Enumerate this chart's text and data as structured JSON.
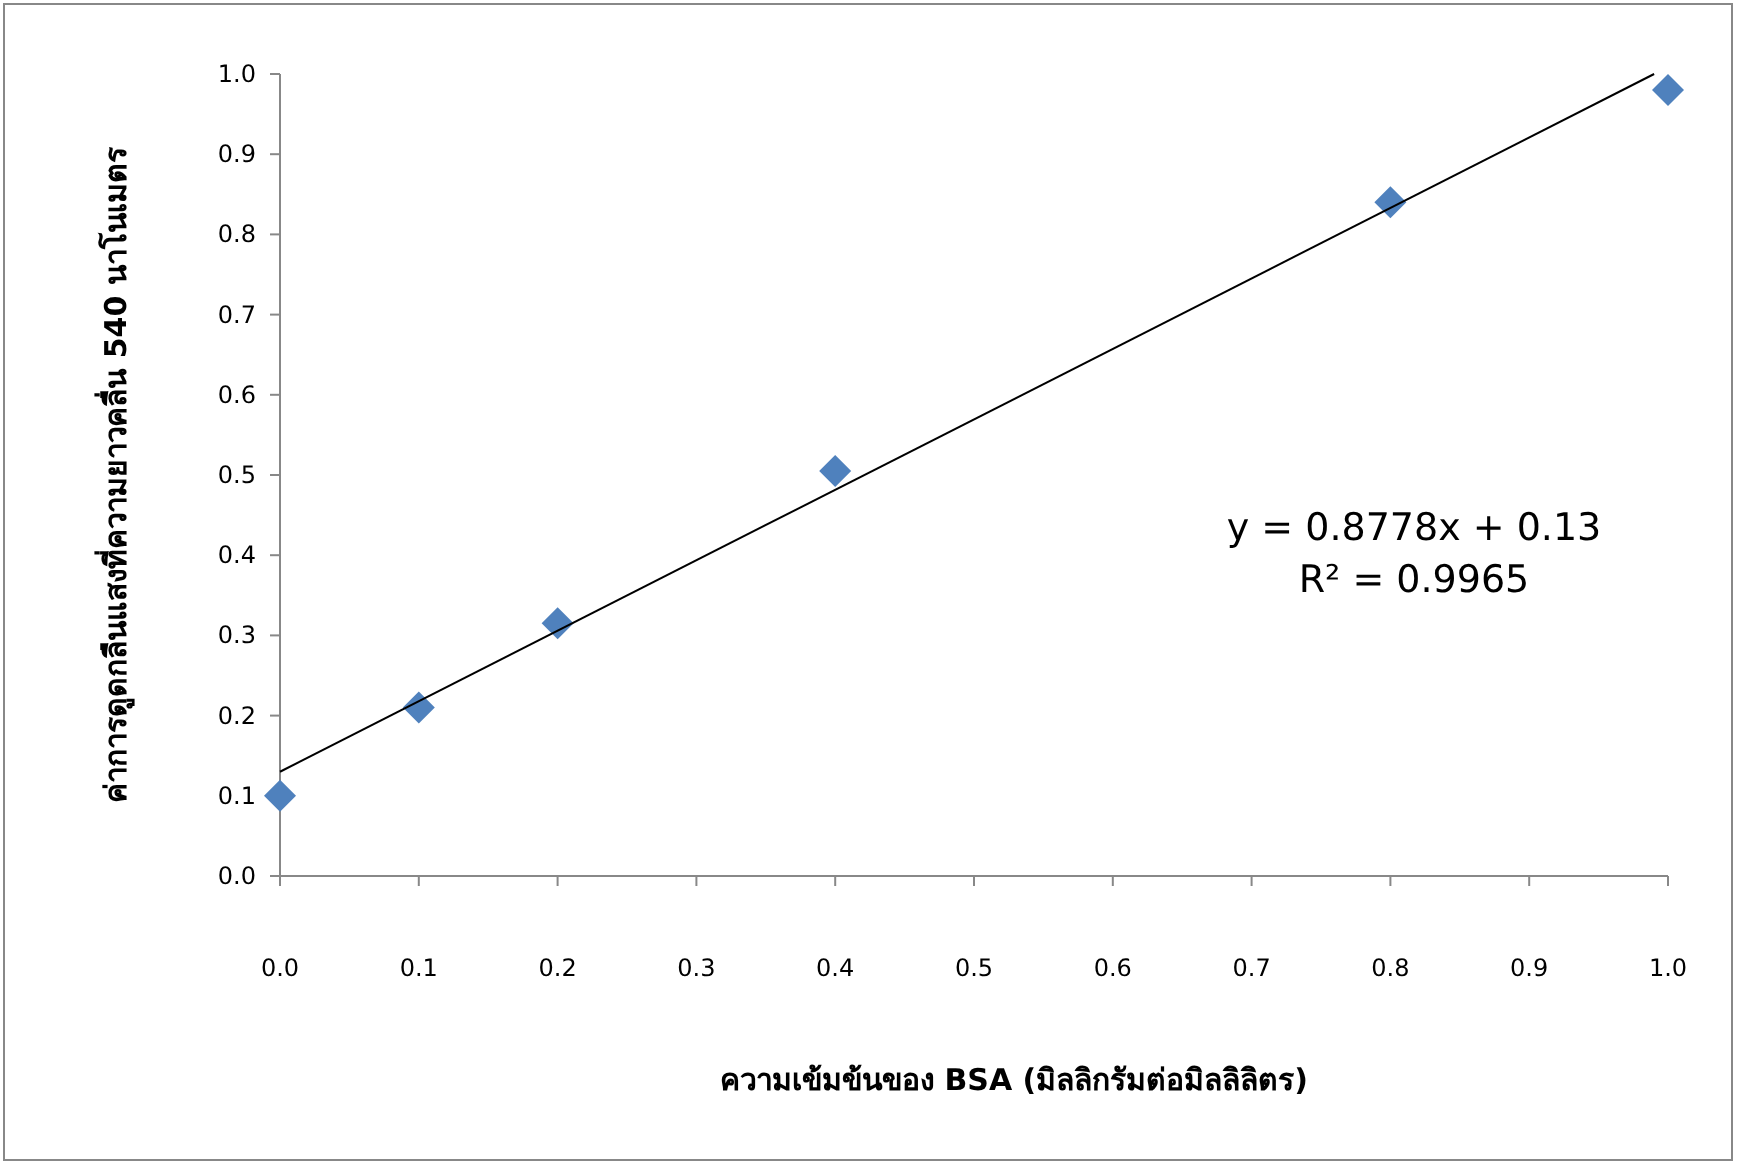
{
  "chart_data": {
    "type": "scatter",
    "xlabel": "ความเข้มข้นของ BSA (มิลลิกรัมต่อมิลลิลิตร)",
    "ylabel": "ค่าการดูดกลืนแสงที่ความยาวคลื่น 540 นาโนเมตร",
    "x": [
      0,
      0.1,
      0.2,
      0.4,
      0.8,
      1.0
    ],
    "series": [
      {
        "type": "scatter",
        "color": "#4f81bd",
        "marker": "diamond",
        "values": [
          0.1,
          0.21,
          0.315,
          0.505,
          0.84,
          0.98
        ]
      },
      {
        "type": "line",
        "color": "#000000",
        "x": [
          0,
          0.99
        ],
        "values": [
          0.13,
          1.0
        ]
      }
    ],
    "xlim": [
      0,
      1
    ],
    "ylim": [
      0,
      1
    ],
    "xticks": [
      {
        "value": 0,
        "label": "0.0"
      },
      {
        "value": 0.1,
        "label": "0.1"
      },
      {
        "value": 0.2,
        "label": "0.2"
      },
      {
        "value": 0.3,
        "label": "0.3"
      },
      {
        "value": 0.4,
        "label": "0.4"
      },
      {
        "value": 0.5,
        "label": "0.5"
      },
      {
        "value": 0.6,
        "label": "0.6"
      },
      {
        "value": 0.7,
        "label": "0.7"
      },
      {
        "value": 0.8,
        "label": "0.8"
      },
      {
        "value": 0.9,
        "label": "0.9"
      },
      {
        "value": 1,
        "label": "1.0"
      }
    ],
    "yticks": [
      {
        "value": 0,
        "label": "0.0"
      },
      {
        "value": 0.1,
        "label": "0.1"
      },
      {
        "value": 0.2,
        "label": "0.2"
      },
      {
        "value": 0.3,
        "label": "0.3"
      },
      {
        "value": 0.4,
        "label": "0.4"
      },
      {
        "value": 0.5,
        "label": "0.5"
      },
      {
        "value": 0.6,
        "label": "0.6"
      },
      {
        "value": 0.7,
        "label": "0.7"
      },
      {
        "value": 0.8,
        "label": "0.8"
      },
      {
        "value": 0.9,
        "label": "0.9"
      },
      {
        "value": 1,
        "label": "1.0"
      }
    ],
    "annotations": [
      "y = 0.8778x + 0.13",
      "R² = 0.9965"
    ]
  }
}
